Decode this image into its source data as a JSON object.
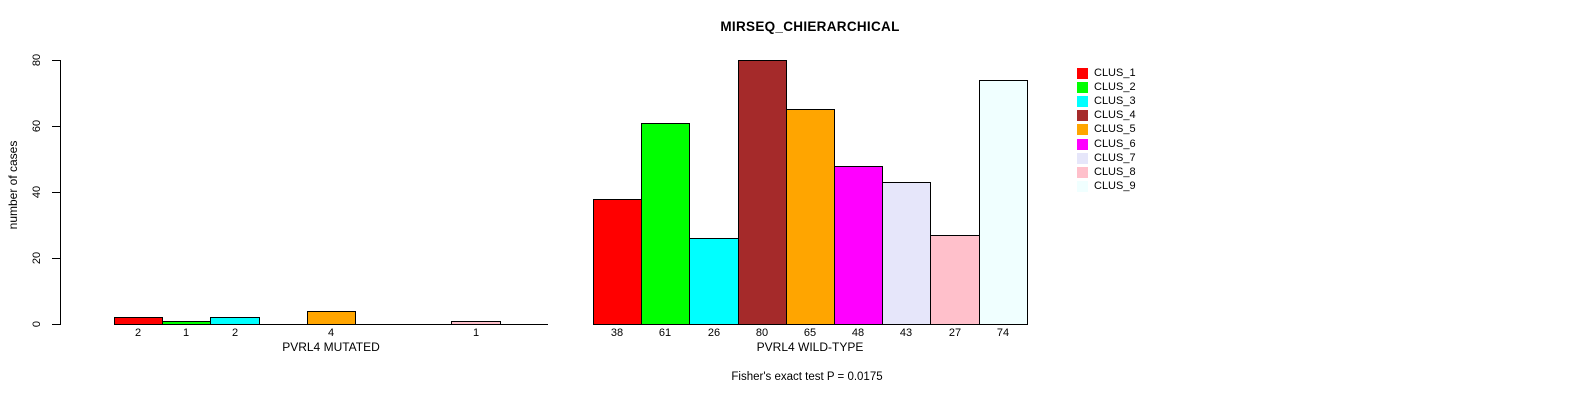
{
  "figure": {
    "background": "#ffffff",
    "axis_color": "#000000"
  },
  "legend": {
    "position": "top-right-outside",
    "items": [
      {
        "label": "CLUS_1",
        "color": "#FF0000"
      },
      {
        "label": "CLUS_2",
        "color": "#00FF00"
      },
      {
        "label": "CLUS_3",
        "color": "#00FFFF"
      },
      {
        "label": "CLUS_4",
        "color": "#A52A2A"
      },
      {
        "label": "CLUS_5",
        "color": "#FFA500"
      },
      {
        "label": "CLUS_6",
        "color": "#FF00FF"
      },
      {
        "label": "CLUS_7",
        "color": "#E6E6FA"
      },
      {
        "label": "CLUS_8",
        "color": "#FFC0CB"
      },
      {
        "label": "CLUS_9",
        "color": "#F0FFFF"
      }
    ]
  },
  "chart_data": [
    {
      "type": "bar",
      "panel": "left",
      "title": "",
      "xlabel": "PVRL4 MUTATED",
      "ylabel": "number of cases",
      "categories": [
        "CLUS_1",
        "CLUS_2",
        "CLUS_3",
        "CLUS_4",
        "CLUS_5",
        "CLUS_6",
        "CLUS_7",
        "CLUS_8",
        "CLUS_9"
      ],
      "values": [
        2,
        1,
        2,
        0,
        4,
        0,
        0,
        1,
        0
      ],
      "bar_labels": [
        "2",
        "1",
        "2",
        "",
        "4",
        "",
        "",
        "1",
        ""
      ],
      "colors": [
        "#FF0000",
        "#00FF00",
        "#00FFFF",
        "#A52A2A",
        "#FFA500",
        "#FF00FF",
        "#E6E6FA",
        "#FFC0CB",
        "#F0FFFF"
      ],
      "ylim": [
        0,
        80
      ],
      "yticks": [
        0,
        20,
        40,
        60,
        80
      ],
      "grid": false,
      "bar_gap": 0
    },
    {
      "type": "bar",
      "panel": "right",
      "title": "MIRSEQ_CHIERARCHICAL",
      "annotation": "Fisher's exact test P = 0.0175",
      "xlabel": "PVRL4 WILD-TYPE",
      "ylabel": "",
      "categories": [
        "CLUS_1",
        "CLUS_2",
        "CLUS_3",
        "CLUS_4",
        "CLUS_5",
        "CLUS_6",
        "CLUS_7",
        "CLUS_8",
        "CLUS_9"
      ],
      "values": [
        38,
        61,
        26,
        80,
        65,
        48,
        43,
        27,
        74
      ],
      "bar_labels": [
        "38",
        "61",
        "26",
        "80",
        "65",
        "48",
        "43",
        "27",
        "74"
      ],
      "colors": [
        "#FF0000",
        "#00FF00",
        "#00FFFF",
        "#A52A2A",
        "#FFA500",
        "#FF00FF",
        "#E6E6FA",
        "#FFC0CB",
        "#F0FFFF"
      ],
      "ylim": [
        0,
        80
      ],
      "yticks": [
        0,
        20,
        40,
        60,
        80
      ],
      "grid": false,
      "bar_gap": 0
    }
  ]
}
